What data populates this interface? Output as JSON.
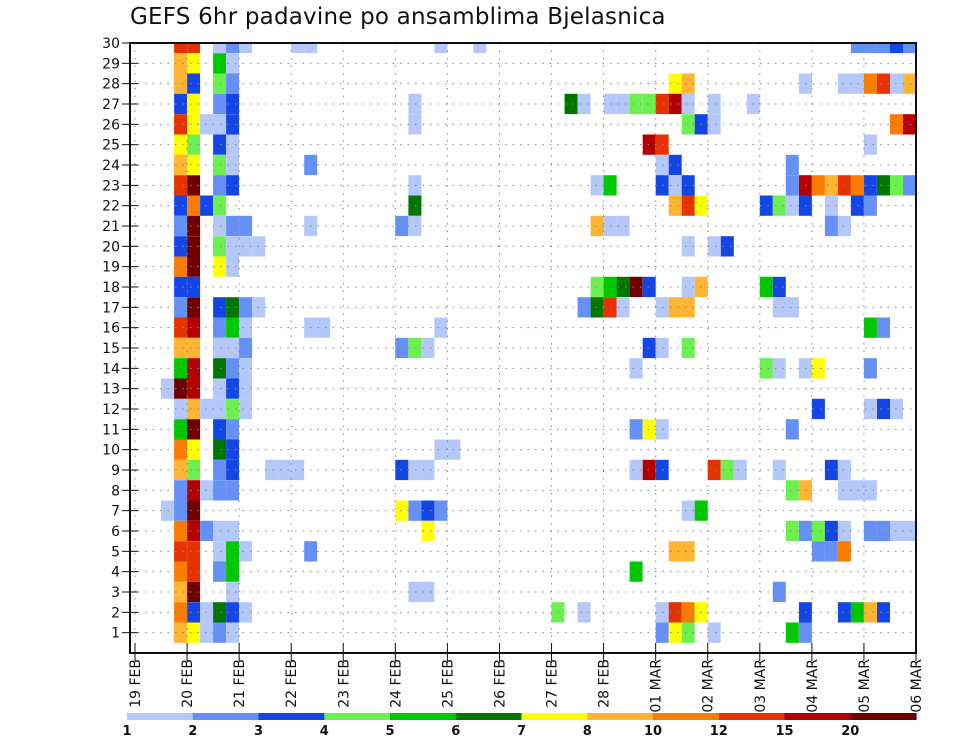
{
  "chart_data": {
    "type": "heatmap",
    "title": "GEFS 6hr padavine po ansamblima Bjelasnica",
    "xlabel": "",
    "ylabel": "",
    "x_tick_labels": [
      "19 FEB",
      "20 FEB",
      "21 FEB",
      "22 FEB",
      "23 FEB",
      "24 FEB",
      "25 FEB",
      "26 FEB",
      "27 FEB",
      "28 FEB",
      "01 MAR",
      "02 MAR",
      "03 MAR",
      "04 MAR",
      "05 MAR",
      "06 MAR"
    ],
    "x_steps_per_day": 4,
    "y_tick_labels": [
      "1",
      "2",
      "3",
      "4",
      "5",
      "6",
      "7",
      "8",
      "9",
      "10",
      "11",
      "12",
      "13",
      "14",
      "15",
      "16",
      "17",
      "18",
      "19",
      "20",
      "21",
      "22",
      "23",
      "24",
      "25",
      "26",
      "27",
      "28",
      "29",
      "30"
    ],
    "ylim": [
      0,
      30
    ],
    "grid": "dotted",
    "legend": {
      "placement": "bottom",
      "levels": [
        "1",
        "2",
        "3",
        "4",
        "5",
        "6",
        "7",
        "8",
        "10",
        "12",
        "15",
        "20"
      ],
      "colors": [
        "#b4c8fa",
        "#6490f8",
        "#1446e6",
        "#6cf050",
        "#00c800",
        "#007800",
        "#ffff00",
        "#ffb432",
        "#fa7d00",
        "#e63200",
        "#b40000",
        "#6e0000"
      ]
    },
    "cells_note": "each cell = [member, six_hour_step_index_from_19FEB_00Z, color_class_index]",
    "cells": [
      [
        30,
        3,
        9
      ],
      [
        30,
        4,
        9
      ],
      [
        30,
        6,
        0
      ],
      [
        30,
        7,
        1
      ],
      [
        30,
        8,
        0
      ],
      [
        30,
        12,
        0
      ],
      [
        30,
        13,
        0
      ],
      [
        30,
        23,
        0
      ],
      [
        30,
        26,
        0
      ],
      [
        30,
        55,
        1
      ],
      [
        30,
        56,
        1
      ],
      [
        30,
        57,
        1
      ],
      [
        30,
        58,
        2
      ],
      [
        30,
        59,
        1
      ],
      [
        29,
        3,
        7
      ],
      [
        29,
        4,
        6
      ],
      [
        29,
        6,
        4
      ],
      [
        29,
        7,
        0
      ],
      [
        28,
        3,
        7
      ],
      [
        28,
        4,
        2
      ],
      [
        28,
        6,
        3
      ],
      [
        28,
        7,
        1
      ],
      [
        28,
        41,
        6
      ],
      [
        28,
        42,
        7
      ],
      [
        28,
        51,
        0
      ],
      [
        28,
        54,
        0
      ],
      [
        28,
        55,
        0
      ],
      [
        28,
        56,
        8
      ],
      [
        28,
        57,
        9
      ],
      [
        28,
        58,
        0
      ],
      [
        28,
        59,
        7
      ],
      [
        27,
        3,
        2
      ],
      [
        27,
        4,
        6
      ],
      [
        27,
        6,
        1
      ],
      [
        27,
        7,
        2
      ],
      [
        27,
        21,
        0
      ],
      [
        27,
        33,
        5
      ],
      [
        27,
        34,
        0
      ],
      [
        27,
        36,
        0
      ],
      [
        27,
        37,
        0
      ],
      [
        27,
        38,
        3
      ],
      [
        27,
        39,
        3
      ],
      [
        27,
        40,
        9
      ],
      [
        27,
        41,
        10
      ],
      [
        27,
        42,
        0
      ],
      [
        27,
        44,
        0
      ],
      [
        27,
        47,
        0
      ],
      [
        26,
        3,
        9
      ],
      [
        26,
        4,
        6
      ],
      [
        26,
        5,
        0
      ],
      [
        26,
        6,
        0
      ],
      [
        26,
        7,
        2
      ],
      [
        26,
        21,
        0
      ],
      [
        26,
        42,
        3
      ],
      [
        26,
        43,
        2
      ],
      [
        26,
        44,
        0
      ],
      [
        26,
        58,
        8
      ],
      [
        26,
        59,
        10
      ],
      [
        25,
        3,
        6
      ],
      [
        25,
        4,
        3
      ],
      [
        25,
        6,
        2
      ],
      [
        25,
        7,
        0
      ],
      [
        25,
        39,
        10
      ],
      [
        25,
        40,
        9
      ],
      [
        25,
        56,
        0
      ],
      [
        24,
        3,
        7
      ],
      [
        24,
        4,
        6
      ],
      [
        24,
        6,
        3
      ],
      [
        24,
        7,
        0
      ],
      [
        24,
        13,
        1
      ],
      [
        24,
        40,
        0
      ],
      [
        24,
        41,
        2
      ],
      [
        24,
        50,
        1
      ],
      [
        23,
        3,
        9
      ],
      [
        23,
        4,
        11
      ],
      [
        23,
        6,
        1
      ],
      [
        23,
        7,
        2
      ],
      [
        23,
        21,
        0
      ],
      [
        23,
        35,
        0
      ],
      [
        23,
        36,
        4
      ],
      [
        23,
        40,
        2
      ],
      [
        23,
        41,
        0
      ],
      [
        23,
        42,
        2
      ],
      [
        23,
        50,
        1
      ],
      [
        23,
        51,
        10
      ],
      [
        23,
        52,
        8
      ],
      [
        23,
        53,
        7
      ],
      [
        23,
        54,
        9
      ],
      [
        23,
        55,
        8
      ],
      [
        23,
        56,
        2
      ],
      [
        23,
        57,
        5
      ],
      [
        23,
        58,
        3
      ],
      [
        23,
        59,
        1
      ],
      [
        22,
        3,
        2
      ],
      [
        22,
        4,
        8
      ],
      [
        22,
        5,
        2
      ],
      [
        22,
        6,
        3
      ],
      [
        22,
        21,
        5
      ],
      [
        22,
        41,
        7
      ],
      [
        22,
        42,
        9
      ],
      [
        22,
        43,
        6
      ],
      [
        22,
        48,
        2
      ],
      [
        22,
        49,
        3
      ],
      [
        22,
        50,
        0
      ],
      [
        22,
        51,
        2
      ],
      [
        22,
        53,
        0
      ],
      [
        22,
        55,
        2
      ],
      [
        22,
        56,
        1
      ],
      [
        21,
        3,
        1
      ],
      [
        21,
        4,
        11
      ],
      [
        21,
        6,
        0
      ],
      [
        21,
        7,
        1
      ],
      [
        21,
        8,
        1
      ],
      [
        21,
        13,
        0
      ],
      [
        21,
        20,
        1
      ],
      [
        21,
        21,
        0
      ],
      [
        21,
        35,
        7
      ],
      [
        21,
        36,
        0
      ],
      [
        21,
        37,
        0
      ],
      [
        21,
        53,
        1
      ],
      [
        21,
        54,
        0
      ],
      [
        20,
        3,
        2
      ],
      [
        20,
        4,
        11
      ],
      [
        20,
        6,
        3
      ],
      [
        20,
        7,
        0
      ],
      [
        20,
        8,
        0
      ],
      [
        20,
        9,
        0
      ],
      [
        20,
        42,
        0
      ],
      [
        20,
        44,
        0
      ],
      [
        20,
        45,
        2
      ],
      [
        19,
        3,
        8
      ],
      [
        19,
        4,
        11
      ],
      [
        19,
        6,
        6
      ],
      [
        19,
        7,
        0
      ],
      [
        18,
        3,
        2
      ],
      [
        18,
        4,
        2
      ],
      [
        18,
        35,
        3
      ],
      [
        18,
        36,
        4
      ],
      [
        18,
        37,
        5
      ],
      [
        18,
        38,
        11
      ],
      [
        18,
        39,
        2
      ],
      [
        18,
        42,
        0
      ],
      [
        18,
        43,
        7
      ],
      [
        18,
        48,
        4
      ],
      [
        18,
        49,
        2
      ],
      [
        17,
        3,
        1
      ],
      [
        17,
        4,
        11
      ],
      [
        17,
        6,
        2
      ],
      [
        17,
        7,
        5
      ],
      [
        17,
        8,
        1
      ],
      [
        17,
        9,
        0
      ],
      [
        17,
        34,
        1
      ],
      [
        17,
        35,
        5
      ],
      [
        17,
        36,
        9
      ],
      [
        17,
        37,
        0
      ],
      [
        17,
        40,
        0
      ],
      [
        17,
        41,
        7
      ],
      [
        17,
        42,
        7
      ],
      [
        17,
        49,
        0
      ],
      [
        17,
        50,
        0
      ],
      [
        16,
        3,
        9
      ],
      [
        16,
        4,
        10
      ],
      [
        16,
        6,
        1
      ],
      [
        16,
        7,
        4
      ],
      [
        16,
        8,
        0
      ],
      [
        16,
        13,
        0
      ],
      [
        16,
        14,
        0
      ],
      [
        16,
        23,
        0
      ],
      [
        16,
        56,
        4
      ],
      [
        16,
        57,
        1
      ],
      [
        15,
        3,
        7
      ],
      [
        15,
        4,
        7
      ],
      [
        15,
        6,
        0
      ],
      [
        15,
        7,
        0
      ],
      [
        15,
        8,
        1
      ],
      [
        15,
        20,
        1
      ],
      [
        15,
        21,
        3
      ],
      [
        15,
        22,
        0
      ],
      [
        15,
        39,
        2
      ],
      [
        15,
        40,
        0
      ],
      [
        15,
        42,
        3
      ],
      [
        14,
        3,
        4
      ],
      [
        14,
        4,
        10
      ],
      [
        14,
        6,
        5
      ],
      [
        14,
        7,
        1
      ],
      [
        14,
        8,
        0
      ],
      [
        14,
        38,
        0
      ],
      [
        14,
        48,
        3
      ],
      [
        14,
        49,
        0
      ],
      [
        14,
        51,
        0
      ],
      [
        14,
        52,
        6
      ],
      [
        14,
        56,
        1
      ],
      [
        13,
        2,
        0
      ],
      [
        13,
        3,
        11
      ],
      [
        13,
        4,
        10
      ],
      [
        13,
        6,
        0
      ],
      [
        13,
        7,
        2
      ],
      [
        13,
        8,
        0
      ],
      [
        12,
        3,
        0
      ],
      [
        12,
        4,
        7
      ],
      [
        12,
        5,
        0
      ],
      [
        12,
        6,
        0
      ],
      [
        12,
        7,
        3
      ],
      [
        12,
        8,
        0
      ],
      [
        12,
        52,
        2
      ],
      [
        12,
        56,
        0
      ],
      [
        12,
        57,
        2
      ],
      [
        12,
        58,
        0
      ],
      [
        11,
        3,
        4
      ],
      [
        11,
        4,
        11
      ],
      [
        11,
        6,
        2
      ],
      [
        11,
        7,
        1
      ],
      [
        11,
        38,
        1
      ],
      [
        11,
        39,
        6
      ],
      [
        11,
        40,
        0
      ],
      [
        11,
        50,
        1
      ],
      [
        10,
        3,
        8
      ],
      [
        10,
        4,
        6
      ],
      [
        10,
        6,
        5
      ],
      [
        10,
        7,
        2
      ],
      [
        10,
        23,
        0
      ],
      [
        10,
        24,
        0
      ],
      [
        9,
        3,
        7
      ],
      [
        9,
        4,
        3
      ],
      [
        9,
        6,
        1
      ],
      [
        9,
        7,
        2
      ],
      [
        9,
        10,
        0
      ],
      [
        9,
        11,
        0
      ],
      [
        9,
        12,
        0
      ],
      [
        9,
        20,
        2
      ],
      [
        9,
        21,
        0
      ],
      [
        9,
        22,
        0
      ],
      [
        9,
        38,
        0
      ],
      [
        9,
        39,
        10
      ],
      [
        9,
        40,
        2
      ],
      [
        9,
        44,
        9
      ],
      [
        9,
        45,
        3
      ],
      [
        9,
        46,
        0
      ],
      [
        9,
        49,
        0
      ],
      [
        9,
        53,
        2
      ],
      [
        9,
        54,
        0
      ],
      [
        8,
        3,
        1
      ],
      [
        8,
        4,
        10
      ],
      [
        8,
        5,
        0
      ],
      [
        8,
        6,
        1
      ],
      [
        8,
        7,
        1
      ],
      [
        8,
        50,
        3
      ],
      [
        8,
        51,
        7
      ],
      [
        8,
        54,
        0
      ],
      [
        8,
        55,
        0
      ],
      [
        8,
        56,
        0
      ],
      [
        7,
        2,
        0
      ],
      [
        7,
        3,
        1
      ],
      [
        7,
        4,
        11
      ],
      [
        7,
        20,
        6
      ],
      [
        7,
        21,
        1
      ],
      [
        7,
        22,
        2
      ],
      [
        7,
        23,
        1
      ],
      [
        7,
        42,
        0
      ],
      [
        7,
        43,
        4
      ],
      [
        6,
        3,
        8
      ],
      [
        6,
        4,
        10
      ],
      [
        6,
        5,
        1
      ],
      [
        6,
        6,
        0
      ],
      [
        6,
        7,
        0
      ],
      [
        6,
        22,
        6
      ],
      [
        6,
        50,
        3
      ],
      [
        6,
        51,
        1
      ],
      [
        6,
        52,
        3
      ],
      [
        6,
        53,
        2
      ],
      [
        6,
        54,
        0
      ],
      [
        6,
        56,
        1
      ],
      [
        6,
        57,
        1
      ],
      [
        6,
        58,
        0
      ],
      [
        6,
        59,
        0
      ],
      [
        5,
        3,
        9
      ],
      [
        5,
        4,
        9
      ],
      [
        5,
        6,
        0
      ],
      [
        5,
        7,
        4
      ],
      [
        5,
        8,
        0
      ],
      [
        5,
        13,
        1
      ],
      [
        5,
        41,
        7
      ],
      [
        5,
        42,
        7
      ],
      [
        5,
        52,
        1
      ],
      [
        5,
        53,
        1
      ],
      [
        5,
        54,
        8
      ],
      [
        4,
        3,
        8
      ],
      [
        4,
        4,
        9
      ],
      [
        4,
        6,
        1
      ],
      [
        4,
        7,
        4
      ],
      [
        4,
        38,
        4
      ],
      [
        3,
        3,
        7
      ],
      [
        3,
        4,
        11
      ],
      [
        3,
        7,
        0
      ],
      [
        3,
        21,
        0
      ],
      [
        3,
        22,
        0
      ],
      [
        3,
        49,
        1
      ],
      [
        2,
        3,
        8
      ],
      [
        2,
        4,
        2
      ],
      [
        2,
        5,
        0
      ],
      [
        2,
        6,
        5
      ],
      [
        2,
        7,
        2
      ],
      [
        2,
        8,
        0
      ],
      [
        2,
        32,
        3
      ],
      [
        2,
        34,
        0
      ],
      [
        2,
        40,
        0
      ],
      [
        2,
        41,
        9
      ],
      [
        2,
        42,
        8
      ],
      [
        2,
        43,
        6
      ],
      [
        2,
        51,
        2
      ],
      [
        2,
        54,
        2
      ],
      [
        2,
        55,
        4
      ],
      [
        2,
        56,
        7
      ],
      [
        2,
        57,
        2
      ],
      [
        1,
        3,
        7
      ],
      [
        1,
        4,
        6
      ],
      [
        1,
        5,
        0
      ],
      [
        1,
        6,
        1
      ],
      [
        1,
        7,
        0
      ],
      [
        1,
        40,
        1
      ],
      [
        1,
        41,
        6
      ],
      [
        1,
        42,
        3
      ],
      [
        1,
        44,
        0
      ],
      [
        1,
        50,
        4
      ],
      [
        1,
        51,
        1
      ]
    ]
  }
}
